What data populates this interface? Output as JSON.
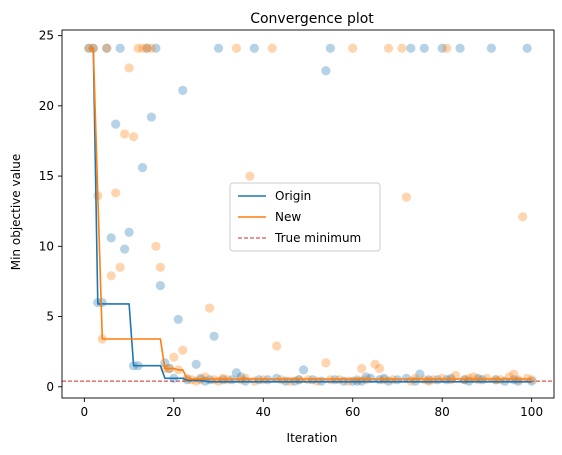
{
  "chart_data": {
    "type": "scatter",
    "title": "Convergence plot",
    "xlabel": "Iteration",
    "ylabel": "Min objective value",
    "xlim": [
      -5,
      105
    ],
    "ylim": [
      -0.8,
      25.4
    ],
    "xticks": [
      0,
      20,
      40,
      60,
      80,
      100
    ],
    "yticks": [
      0,
      5,
      10,
      15,
      20,
      25
    ],
    "grid": false,
    "legend_position": "center",
    "true_minimum": {
      "name": "True minimum",
      "value": 0.4,
      "color": "#d62728",
      "style": "dashed"
    },
    "series": [
      {
        "name": "Origin",
        "color": "#1f77b4",
        "line": [
          [
            1,
            24.1
          ],
          [
            2,
            24.1
          ],
          [
            3,
            5.9
          ],
          [
            4,
            5.9
          ],
          [
            5,
            5.9
          ],
          [
            6,
            5.9
          ],
          [
            7,
            5.9
          ],
          [
            8,
            5.9
          ],
          [
            9,
            5.9
          ],
          [
            10,
            5.9
          ],
          [
            11,
            1.5
          ],
          [
            12,
            1.5
          ],
          [
            13,
            1.5
          ],
          [
            14,
            1.5
          ],
          [
            15,
            1.5
          ],
          [
            16,
            1.5
          ],
          [
            17,
            1.5
          ],
          [
            18,
            0.6
          ],
          [
            19,
            0.6
          ],
          [
            20,
            0.6
          ],
          [
            21,
            0.6
          ],
          [
            22,
            0.6
          ],
          [
            23,
            0.45
          ],
          [
            24,
            0.45
          ],
          [
            25,
            0.45
          ],
          [
            26,
            0.45
          ],
          [
            27,
            0.4
          ],
          [
            28,
            0.35
          ],
          [
            100,
            0.35
          ]
        ],
        "points": [
          [
            1,
            24.1
          ],
          [
            2,
            24.1
          ],
          [
            3,
            6.0
          ],
          [
            4,
            6.0
          ],
          [
            5,
            24.1
          ],
          [
            6,
            10.6
          ],
          [
            7,
            18.7
          ],
          [
            8,
            24.1
          ],
          [
            9,
            9.8
          ],
          [
            10,
            11.0
          ],
          [
            11,
            1.5
          ],
          [
            12,
            1.5
          ],
          [
            13,
            15.6
          ],
          [
            14,
            24.1
          ],
          [
            15,
            19.2
          ],
          [
            16,
            24.1
          ],
          [
            17,
            7.2
          ],
          [
            18,
            1.7
          ],
          [
            19,
            1.3
          ],
          [
            20,
            0.6
          ],
          [
            21,
            4.8
          ],
          [
            22,
            21.1
          ],
          [
            23,
            0.5
          ],
          [
            25,
            1.6
          ],
          [
            26,
            0.6
          ],
          [
            27,
            0.4
          ],
          [
            28,
            0.5
          ],
          [
            29,
            3.6
          ],
          [
            30,
            24.1
          ],
          [
            31,
            0.5
          ],
          [
            33,
            0.5
          ],
          [
            34,
            1.0
          ],
          [
            35,
            0.7
          ],
          [
            36,
            0.4
          ],
          [
            38,
            24.1
          ],
          [
            39,
            0.5
          ],
          [
            41,
            0.5
          ],
          [
            43,
            0.6
          ],
          [
            45,
            0.4
          ],
          [
            47,
            0.4
          ],
          [
            48,
            0.5
          ],
          [
            49,
            1.2
          ],
          [
            51,
            0.5
          ],
          [
            53,
            0.4
          ],
          [
            54,
            22.5
          ],
          [
            55,
            24.1
          ],
          [
            56,
            0.5
          ],
          [
            58,
            0.4
          ],
          [
            60,
            0.4
          ],
          [
            61,
            0.4
          ],
          [
            62,
            0.4
          ],
          [
            63,
            0.7
          ],
          [
            64,
            0.6
          ],
          [
            66,
            0.5
          ],
          [
            67,
            0.6
          ],
          [
            68,
            0.4
          ],
          [
            70,
            0.5
          ],
          [
            72,
            0.6
          ],
          [
            73,
            24.1
          ],
          [
            74,
            0.4
          ],
          [
            75,
            0.9
          ],
          [
            76,
            24.1
          ],
          [
            77,
            0.5
          ],
          [
            79,
            0.5
          ],
          [
            80,
            24.1
          ],
          [
            81,
            0.5
          ],
          [
            82,
            0.6
          ],
          [
            84,
            24.1
          ],
          [
            85,
            0.5
          ],
          [
            86,
            0.4
          ],
          [
            88,
            0.6
          ],
          [
            89,
            0.5
          ],
          [
            91,
            24.1
          ],
          [
            92,
            0.5
          ],
          [
            94,
            0.4
          ],
          [
            96,
            0.5
          ],
          [
            97,
            0.4
          ],
          [
            99,
            24.1
          ],
          [
            100,
            0.4
          ]
        ]
      },
      {
        "name": "New",
        "color": "#ff7f0e",
        "line": [
          [
            1,
            24.1
          ],
          [
            2,
            24.1
          ],
          [
            3,
            13.6
          ],
          [
            4,
            3.4
          ],
          [
            5,
            3.4
          ],
          [
            16,
            3.4
          ],
          [
            17,
            3.4
          ],
          [
            18,
            1.3
          ],
          [
            19,
            1.3
          ],
          [
            20,
            1.3
          ],
          [
            21,
            1.2
          ],
          [
            22,
            1.2
          ],
          [
            23,
            0.55
          ],
          [
            24,
            0.55
          ],
          [
            100,
            0.55
          ]
        ],
        "points": [
          [
            1,
            24.1
          ],
          [
            2,
            24.1
          ],
          [
            3,
            13.6
          ],
          [
            4,
            3.4
          ],
          [
            5,
            24.1
          ],
          [
            6,
            7.9
          ],
          [
            7,
            13.8
          ],
          [
            8,
            8.5
          ],
          [
            9,
            18.0
          ],
          [
            10,
            22.7
          ],
          [
            11,
            17.8
          ],
          [
            12,
            24.1
          ],
          [
            13,
            24.1
          ],
          [
            14,
            24.1
          ],
          [
            15,
            24.1
          ],
          [
            16,
            10.0
          ],
          [
            17,
            8.5
          ],
          [
            18,
            1.3
          ],
          [
            19,
            1.3
          ],
          [
            20,
            2.1
          ],
          [
            21,
            1.2
          ],
          [
            22,
            2.6
          ],
          [
            23,
            0.6
          ],
          [
            24,
            0.5
          ],
          [
            25,
            0.4
          ],
          [
            26,
            0.5
          ],
          [
            27,
            0.7
          ],
          [
            28,
            5.6
          ],
          [
            29,
            0.5
          ],
          [
            30,
            0.4
          ],
          [
            31,
            0.6
          ],
          [
            32,
            0.5
          ],
          [
            34,
            24.1
          ],
          [
            35,
            0.5
          ],
          [
            36,
            0.6
          ],
          [
            37,
            15.0
          ],
          [
            38,
            0.4
          ],
          [
            40,
            0.5
          ],
          [
            42,
            24.1
          ],
          [
            43,
            2.9
          ],
          [
            44,
            0.5
          ],
          [
            46,
            0.4
          ],
          [
            48,
            0.5
          ],
          [
            50,
            0.5
          ],
          [
            52,
            0.4
          ],
          [
            54,
            1.7
          ],
          [
            55,
            0.5
          ],
          [
            57,
            0.5
          ],
          [
            59,
            0.4
          ],
          [
            60,
            24.1
          ],
          [
            61,
            0.5
          ],
          [
            62,
            1.3
          ],
          [
            63,
            0.5
          ],
          [
            65,
            1.6
          ],
          [
            66,
            1.3
          ],
          [
            67,
            0.5
          ],
          [
            68,
            24.1
          ],
          [
            69,
            0.5
          ],
          [
            71,
            24.1
          ],
          [
            72,
            13.5
          ],
          [
            73,
            0.4
          ],
          [
            74,
            0.6
          ],
          [
            76,
            0.5
          ],
          [
            77,
            0.4
          ],
          [
            78,
            0.5
          ],
          [
            80,
            0.6
          ],
          [
            81,
            24.1
          ],
          [
            82,
            0.5
          ],
          [
            83,
            0.8
          ],
          [
            85,
            0.5
          ],
          [
            86,
            0.6
          ],
          [
            87,
            0.7
          ],
          [
            88,
            0.5
          ],
          [
            90,
            0.6
          ],
          [
            92,
            0.5
          ],
          [
            93,
            0.5
          ],
          [
            95,
            0.7
          ],
          [
            96,
            0.9
          ],
          [
            97,
            0.5
          ],
          [
            98,
            12.1
          ],
          [
            99,
            0.6
          ],
          [
            100,
            0.5
          ]
        ]
      }
    ]
  }
}
